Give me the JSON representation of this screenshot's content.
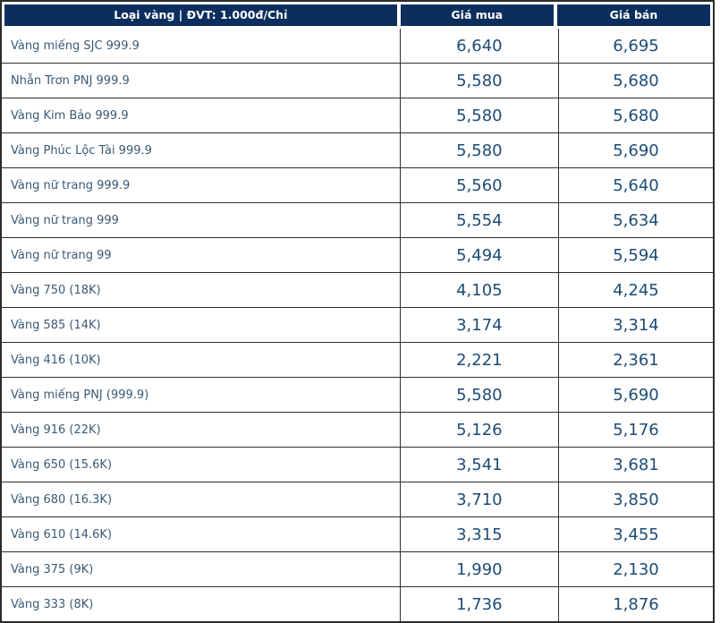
{
  "table": {
    "columns": [
      "Loại vàng | ĐVT: 1.000đ/Chỉ",
      "Giá mua",
      "Giá bán"
    ],
    "rows": [
      {
        "name": "Vàng miếng SJC 999.9",
        "buy": "6,640",
        "sell": "6,695"
      },
      {
        "name": "Nhẫn Trơn PNJ 999.9",
        "buy": "5,580",
        "sell": "5,680"
      },
      {
        "name": "Vàng Kim Bảo 999.9",
        "buy": "5,580",
        "sell": "5,680"
      },
      {
        "name": "Vàng Phúc Lộc Tài 999.9",
        "buy": "5,580",
        "sell": "5,690"
      },
      {
        "name": "Vàng nữ trang 999.9",
        "buy": "5,560",
        "sell": "5,640"
      },
      {
        "name": "Vàng nữ trang 999",
        "buy": "5,554",
        "sell": "5,634"
      },
      {
        "name": "Vàng nữ trang 99",
        "buy": "5,494",
        "sell": "5,594"
      },
      {
        "name": "Vàng 750 (18K)",
        "buy": "4,105",
        "sell": "4,245"
      },
      {
        "name": "Vàng 585 (14K)",
        "buy": "3,174",
        "sell": "3,314"
      },
      {
        "name": "Vàng 416 (10K)",
        "buy": "2,221",
        "sell": "2,361"
      },
      {
        "name": "Vàng miếng PNJ (999.9)",
        "buy": "5,580",
        "sell": "5,690"
      },
      {
        "name": "Vàng 916 (22K)",
        "buy": "5,126",
        "sell": "5,176"
      },
      {
        "name": "Vàng 650 (15.6K)",
        "buy": "3,541",
        "sell": "3,681"
      },
      {
        "name": "Vàng 680 (16.3K)",
        "buy": "3,710",
        "sell": "3,850"
      },
      {
        "name": "Vàng 610 (14.6K)",
        "buy": "3,315",
        "sell": "3,455"
      },
      {
        "name": "Vàng 375 (9K)",
        "buy": "1,990",
        "sell": "2,130"
      },
      {
        "name": "Vàng 333 (8K)",
        "buy": "1,736",
        "sell": "1,876"
      }
    ]
  },
  "chart_data": {
    "type": "table",
    "title": "Loại vàng | ĐVT: 1.000đ/Chỉ",
    "columns": [
      "Loại vàng | ĐVT: 1.000đ/Chỉ",
      "Giá mua",
      "Giá bán"
    ],
    "unit": "1.000đ/Chỉ",
    "rows": [
      [
        "Vàng miếng SJC 999.9",
        6640,
        6695
      ],
      [
        "Nhẫn Trơn PNJ 999.9",
        5580,
        5680
      ],
      [
        "Vàng Kim Bảo 999.9",
        5580,
        5680
      ],
      [
        "Vàng Phúc Lộc Tài 999.9",
        5580,
        5690
      ],
      [
        "Vàng nữ trang 999.9",
        5560,
        5640
      ],
      [
        "Vàng nữ trang 999",
        5554,
        5634
      ],
      [
        "Vàng nữ trang 99",
        5494,
        5594
      ],
      [
        "Vàng 750 (18K)",
        4105,
        4245
      ],
      [
        "Vàng 585 (14K)",
        3174,
        3314
      ],
      [
        "Vàng 416 (10K)",
        2221,
        2361
      ],
      [
        "Vàng miếng PNJ (999.9)",
        5580,
        5690
      ],
      [
        "Vàng 916 (22K)",
        5126,
        5176
      ],
      [
        "Vàng 650 (15.6K)",
        3541,
        3681
      ],
      [
        "Vàng 680 (16.3K)",
        3710,
        3850
      ],
      [
        "Vàng 610 (14.6K)",
        3315,
        3455
      ],
      [
        "Vàng 375 (9K)",
        1990,
        2130
      ],
      [
        "Vàng 333 (8K)",
        1736,
        1876
      ]
    ]
  },
  "colors": {
    "header_bg": "#0b2e5e",
    "header_text": "#ffffff",
    "label_text": "#3a5a76",
    "value_text": "#1d4b76",
    "border": "#2e2e2e"
  }
}
